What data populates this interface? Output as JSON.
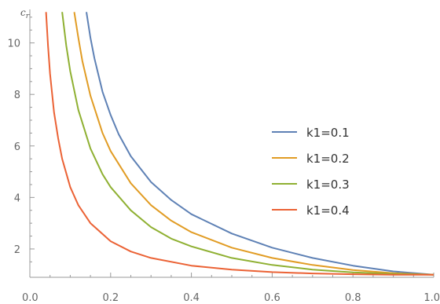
{
  "chart_data": {
    "type": "line",
    "title": "",
    "xlabel": "",
    "ylabel": "c_r",
    "ylabel_main": "c",
    "ylabel_sub": "r",
    "xlim": [
      0,
      1
    ],
    "ylim": [
      0.9,
      11.3
    ],
    "x_ticks": [
      "0.0",
      "0.2",
      "0.4",
      "0.6",
      "0.8",
      "1.0"
    ],
    "y_ticks": [
      "2",
      "4",
      "6",
      "8",
      "10"
    ],
    "legend_position": "center-right",
    "grid": false,
    "series": [
      {
        "name": "k1=0.1",
        "color": "#5E81B5",
        "x": [
          0.14,
          0.15,
          0.16,
          0.18,
          0.2,
          0.22,
          0.25,
          0.3,
          0.35,
          0.4,
          0.5,
          0.6,
          0.7,
          0.8,
          0.9,
          1.0
        ],
        "y": [
          11.2,
          10.2,
          9.4,
          8.1,
          7.2,
          6.45,
          5.6,
          4.6,
          3.9,
          3.35,
          2.6,
          2.05,
          1.65,
          1.35,
          1.13,
          1.0
        ]
      },
      {
        "name": "k1=0.2",
        "color": "#E19C24",
        "x": [
          0.11,
          0.12,
          0.13,
          0.15,
          0.18,
          0.2,
          0.25,
          0.3,
          0.35,
          0.4,
          0.5,
          0.6,
          0.7,
          0.8,
          0.9,
          1.0
        ],
        "y": [
          11.2,
          10.2,
          9.3,
          7.95,
          6.5,
          5.8,
          4.55,
          3.7,
          3.1,
          2.65,
          2.05,
          1.65,
          1.38,
          1.18,
          1.06,
          1.0
        ]
      },
      {
        "name": "k1=0.3",
        "color": "#8FB032",
        "x": [
          0.08,
          0.09,
          0.1,
          0.12,
          0.15,
          0.18,
          0.2,
          0.25,
          0.3,
          0.35,
          0.4,
          0.5,
          0.6,
          0.7,
          0.8,
          0.9,
          1.0
        ],
        "y": [
          11.2,
          9.9,
          8.9,
          7.4,
          5.9,
          4.9,
          4.4,
          3.5,
          2.85,
          2.4,
          2.1,
          1.65,
          1.38,
          1.2,
          1.09,
          1.03,
          1.0
        ]
      },
      {
        "name": "k1=0.4",
        "color": "#EB6235",
        "x": [
          0.04,
          0.045,
          0.05,
          0.06,
          0.07,
          0.08,
          0.1,
          0.12,
          0.15,
          0.2,
          0.25,
          0.3,
          0.4,
          0.5,
          0.6,
          0.7,
          0.8,
          0.9,
          1.0
        ],
        "y": [
          11.2,
          9.9,
          8.8,
          7.3,
          6.3,
          5.5,
          4.4,
          3.7,
          3.0,
          2.3,
          1.9,
          1.65,
          1.35,
          1.2,
          1.1,
          1.05,
          1.02,
          1.0,
          1.0
        ]
      }
    ]
  }
}
